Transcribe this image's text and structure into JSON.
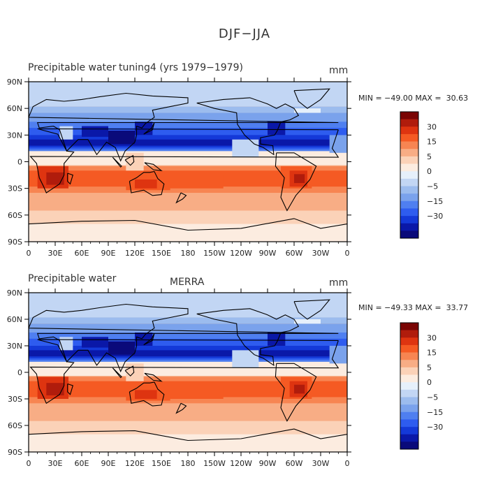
{
  "title": "DJF−JJA",
  "colors": {
    "levels": [
      "#7a0403",
      "#b01c0c",
      "#de3410",
      "#f55a23",
      "#f78552",
      "#f8ad85",
      "#fbd2b8",
      "#fcece0",
      "#e6f0fb",
      "#c2d6f4",
      "#9cbcee",
      "#7aa2ec",
      "#4f7ff0",
      "#2e5cef",
      "#1439d8",
      "#0a18a8",
      "#0a0a7a"
    ],
    "coast": "#000000"
  },
  "chart_data": [
    {
      "type": "heatmap",
      "title_left": "Precipitable water",
      "title_center": "tuning4 (yrs 1979−1979)",
      "units": "mm",
      "stats": "MIN = −49.00 MAX =  30.63",
      "x_ticks": [
        "0",
        "30E",
        "60E",
        "90E",
        "120E",
        "150E",
        "180",
        "150W",
        "120W",
        "90W",
        "60W",
        "30W",
        "0"
      ],
      "y_ticks": [
        "90N",
        "60N",
        "30N",
        "0",
        "30S",
        "60S",
        "90S"
      ],
      "xlim": [
        0,
        360
      ],
      "ylim": [
        -90,
        90
      ],
      "colorbar_labels": [
        "30",
        "15",
        "5",
        "0",
        "−5",
        "−15",
        "−30"
      ],
      "value_min": -49.0,
      "value_max": 30.63
    },
    {
      "type": "heatmap",
      "title_left": "Precipitable water",
      "title_center": "MERRA",
      "units": "mm",
      "stats": "MIN = −49.33 MAX =  33.77",
      "x_ticks": [
        "0",
        "30E",
        "60E",
        "90E",
        "120E",
        "150E",
        "180",
        "150W",
        "120W",
        "90W",
        "60W",
        "30W",
        "0"
      ],
      "y_ticks": [
        "90N",
        "60N",
        "30N",
        "0",
        "30S",
        "60S",
        "90S"
      ],
      "xlim": [
        0,
        360
      ],
      "ylim": [
        -90,
        90
      ],
      "colorbar_labels": [
        "30",
        "15",
        "5",
        "0",
        "−5",
        "−15",
        "−30"
      ],
      "value_min": -49.33,
      "value_max": 33.77
    }
  ]
}
